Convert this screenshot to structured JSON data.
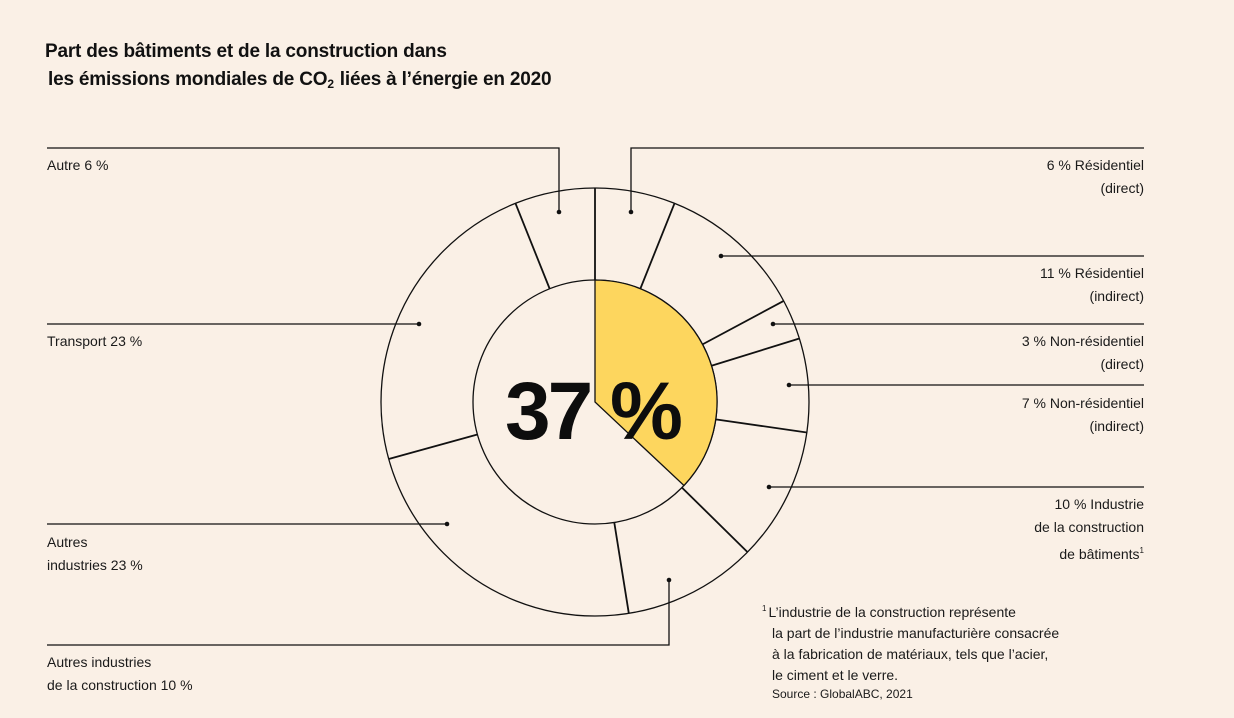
{
  "title": {
    "line1": "Part des bâtiments et de la construction dans",
    "line2_pre": "les émissions mondiales de CO",
    "line2_sub": "2",
    "line2_post": "liées à l’énergie en 2020"
  },
  "colors": {
    "background": "#FAF0E6",
    "highlight": "#FDD65E",
    "stroke": "#111111"
  },
  "chart_data": {
    "type": "pie",
    "title": "Part des bâtiments et de la construction dans les émissions mondiales de CO2 liées à l’énergie en 2020",
    "center_label": "37 %",
    "inner": {
      "highlight_value": 37,
      "unit": "%"
    },
    "segments": [
      {
        "name": "Résidentiel (direct)",
        "value": 6
      },
      {
        "name": "Résidentiel (indirect)",
        "value": 11
      },
      {
        "name": "Non-résidentiel (direct)",
        "value": 3
      },
      {
        "name": "Non-résidentiel (indirect)",
        "value": 7
      },
      {
        "name": "Industrie de la construction de bâtiments",
        "value": 10
      },
      {
        "name": "Autres industries de la construction",
        "value": 10
      },
      {
        "name": "Autres industries",
        "value": 23
      },
      {
        "name": "Transport",
        "value": 23
      },
      {
        "name": "Autre",
        "value": 6
      }
    ]
  },
  "labels": {
    "res_direct": {
      "l1": "6 % Résidentiel",
      "l2": "(direct)"
    },
    "res_indirect": {
      "l1": "11 % Résidentiel",
      "l2": "(indirect)"
    },
    "nonres_direct": {
      "l1": "3 % Non-résidentiel",
      "l2": "(direct)"
    },
    "nonres_indirect": {
      "l1": "7 % Non-résidentiel",
      "l2": "(indirect)"
    },
    "industrie": {
      "l1": "10 % Industrie",
      "l2": "de la construction",
      "l3": "de bâtiments",
      "sup": "1"
    },
    "autre": {
      "l1": "Autre 6 %"
    },
    "transport": {
      "l1": "Transport 23 %"
    },
    "autres_industries": {
      "l1": "Autres",
      "l2": "industries 23 %"
    },
    "autres_ind_constr": {
      "l1": "Autres industries",
      "l2": "de la construction 10 %"
    }
  },
  "footnote": {
    "marker": "1",
    "lines": [
      "L’industrie de la construction représente",
      "la part de l’industrie manufacturière consacrée",
      "à la fabrication de matériaux, tels que l’acier,",
      "le ciment et le verre."
    ],
    "source": "Source : GlobalABC, 2021"
  }
}
